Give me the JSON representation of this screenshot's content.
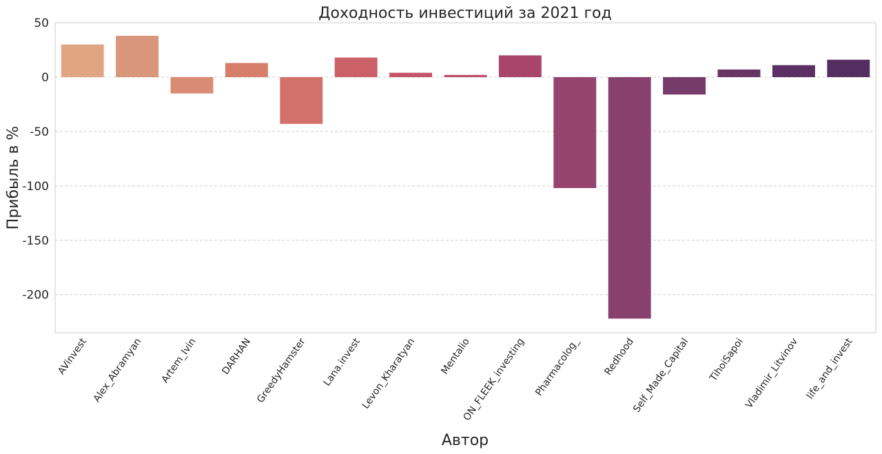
{
  "chart_data": {
    "type": "bar",
    "title": "Доходность инвестиций за 2021 год",
    "xlabel": "Автор",
    "ylabel": "Прибыль в %",
    "ylim": [
      -235,
      50
    ],
    "yticks": [
      50,
      0,
      -50,
      -100,
      -150,
      -200
    ],
    "grid": true,
    "categories": [
      "AVinvest",
      "Alex_Abramyan",
      "Artem_Ivin",
      "DARHAN",
      "GreedyHamster",
      "Lana.invest",
      "Levon_Kharatyan",
      "Mentalio",
      "ON_FLEEK_investing",
      "Pharmacolog_",
      "Redhood",
      "Self_Made_Capital",
      "TihoiSapoi",
      "Vladimir_Litvinov",
      "life_and_invest"
    ],
    "values": [
      30,
      38,
      -15,
      13,
      -43,
      18,
      4,
      2,
      20,
      -102,
      -222,
      -16,
      7,
      11,
      16
    ],
    "colors": [
      "#e2a584",
      "#d8967a",
      "#da8b74",
      "#d67e6a",
      "#d2716a",
      "#cb6068",
      "#c45466",
      "#bd4a68",
      "#a9456a",
      "#97446c",
      "#87416c",
      "#773b69",
      "#673466",
      "#5b2f63",
      "#542d61"
    ]
  }
}
